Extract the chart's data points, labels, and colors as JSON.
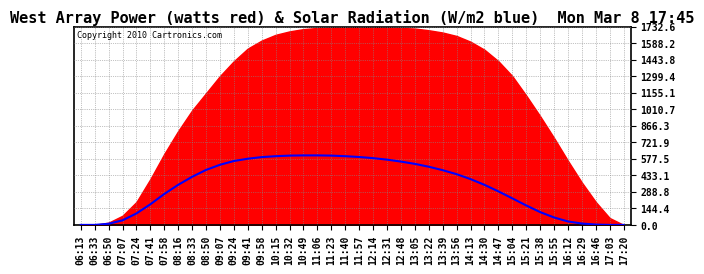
{
  "title": "West Array Power (watts red) & Solar Radiation (W/m2 blue)  Mon Mar 8 17:45",
  "copyright": "Copyright 2010 Cartronics.com",
  "y_ticks": [
    0.0,
    144.4,
    288.8,
    433.1,
    577.5,
    721.9,
    866.3,
    1010.7,
    1155.1,
    1299.4,
    1443.8,
    1588.2,
    1732.6
  ],
  "ymax": 1732.6,
  "ymin": 0.0,
  "x_labels": [
    "06:13",
    "06:33",
    "06:50",
    "07:07",
    "07:24",
    "07:41",
    "07:58",
    "08:16",
    "08:33",
    "08:50",
    "09:07",
    "09:24",
    "09:41",
    "09:58",
    "10:15",
    "10:32",
    "10:49",
    "11:06",
    "11:23",
    "11:40",
    "11:57",
    "12:14",
    "12:31",
    "12:48",
    "13:05",
    "13:22",
    "13:39",
    "13:56",
    "14:13",
    "14:30",
    "14:47",
    "15:04",
    "15:21",
    "15:38",
    "15:55",
    "16:12",
    "16:29",
    "16:46",
    "17:03",
    "17:20"
  ],
  "bg_color": "#ffffff",
  "plot_bg_color": "#ffffff",
  "grid_color": "#888888",
  "red_fill_color": "#ff0000",
  "blue_line_color": "#0000ff",
  "title_fontsize": 11,
  "tick_fontsize": 7,
  "border_color": "#000000",
  "power_values": [
    0,
    0,
    20,
    80,
    200,
    400,
    620,
    820,
    1000,
    1150,
    1300,
    1430,
    1540,
    1610,
    1660,
    1690,
    1710,
    1720,
    1725,
    1728,
    1730,
    1728,
    1725,
    1720,
    1715,
    1700,
    1680,
    1650,
    1600,
    1530,
    1430,
    1300,
    1130,
    950,
    760,
    560,
    370,
    200,
    60,
    0
  ],
  "solar_values": [
    0,
    0,
    10,
    40,
    100,
    180,
    270,
    350,
    420,
    480,
    525,
    558,
    578,
    592,
    600,
    605,
    607,
    607,
    605,
    600,
    593,
    583,
    570,
    553,
    533,
    508,
    478,
    443,
    400,
    350,
    293,
    232,
    170,
    112,
    65,
    30,
    12,
    3,
    0,
    0
  ]
}
